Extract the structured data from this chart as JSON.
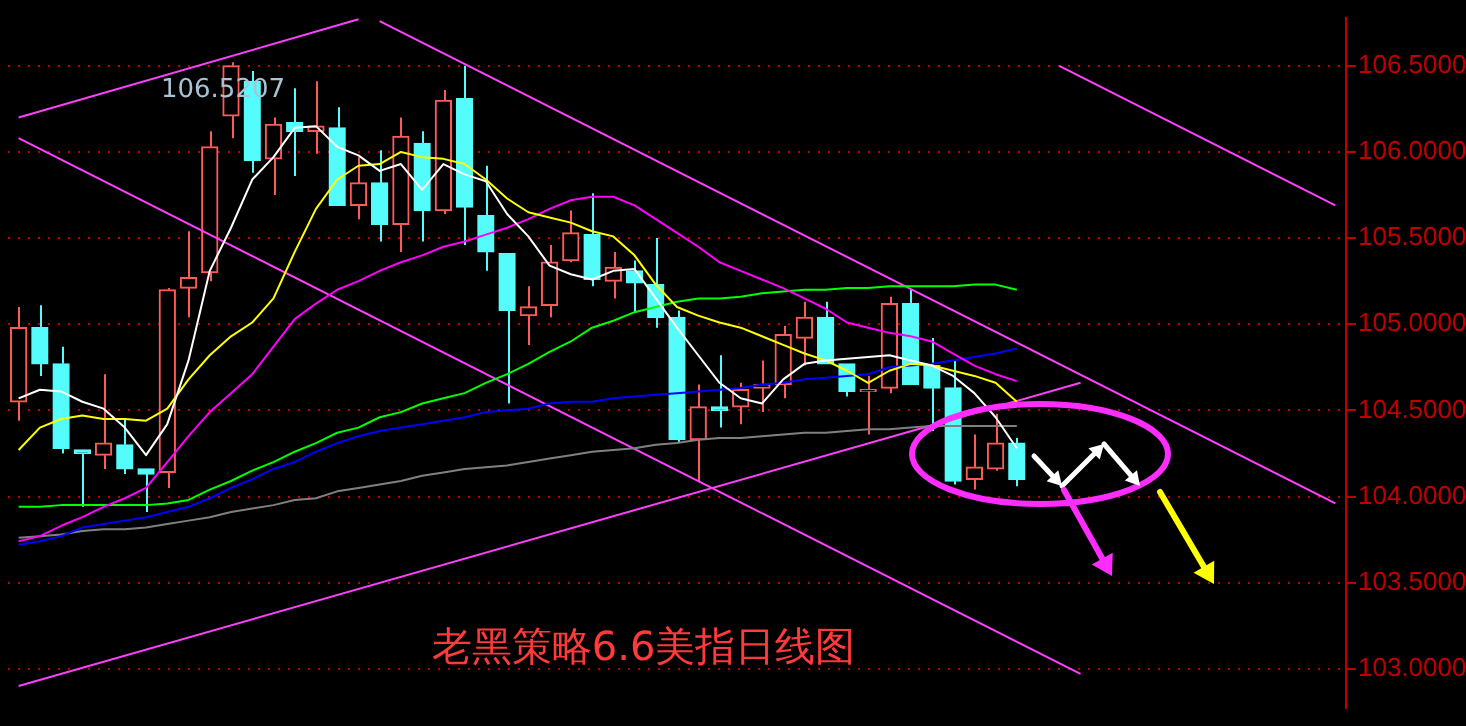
{
  "chart_data": {
    "type": "candlestick",
    "title": "老黑策略6.6美指日线图",
    "categories": [
      null,
      null,
      null,
      null,
      null,
      null,
      null,
      null,
      null,
      null,
      null,
      null,
      null,
      null,
      null,
      null,
      null,
      null,
      null,
      null,
      null,
      null,
      null,
      null,
      null,
      null,
      null,
      null,
      null,
      null,
      null,
      null,
      null,
      null,
      null,
      null,
      null,
      null,
      null,
      null,
      null,
      null,
      null,
      null,
      null,
      null,
      null,
      null,
      null,
      null,
      null,
      null,
      null,
      null,
      null,
      null,
      null,
      null,
      null,
      null,
      null,
      null,
      null
    ],
    "ohlc": [
      [
        104.55,
        105.1,
        104.44,
        104.98
      ],
      [
        104.98,
        105.11,
        104.7,
        104.77
      ],
      [
        104.77,
        104.87,
        104.25,
        104.28
      ],
      [
        104.27,
        104.27,
        103.94,
        104.25
      ],
      [
        104.24,
        104.71,
        104.16,
        104.31
      ],
      [
        104.3,
        104.45,
        104.13,
        104.16
      ],
      [
        104.16,
        104.16,
        103.91,
        104.13
      ],
      [
        104.14,
        105.21,
        104.05,
        105.2
      ],
      [
        105.21,
        105.54,
        105.04,
        105.27
      ],
      [
        105.3,
        106.12,
        105.25,
        106.03
      ],
      [
        106.21,
        106.5207,
        106.08,
        106.5
      ],
      [
        106.41,
        106.47,
        105.88,
        105.95
      ],
      [
        105.96,
        106.2,
        105.75,
        106.16
      ],
      [
        106.17,
        106.37,
        105.86,
        106.12
      ],
      [
        106.12,
        106.41,
        105.99,
        106.15
      ],
      [
        106.14,
        106.26,
        105.69,
        105.69
      ],
      [
        105.69,
        105.97,
        105.61,
        105.82
      ],
      [
        105.82,
        106.01,
        105.48,
        105.58
      ],
      [
        105.58,
        106.2,
        105.42,
        106.09
      ],
      [
        106.05,
        106.12,
        105.48,
        105.66
      ],
      [
        105.66,
        106.36,
        105.64,
        106.3
      ],
      [
        106.31,
        106.5,
        105.46,
        105.68
      ],
      [
        105.63,
        105.92,
        105.31,
        105.42
      ],
      [
        105.41,
        105.41,
        104.54,
        105.08
      ],
      [
        105.05,
        105.22,
        104.88,
        105.1
      ],
      [
        105.11,
        105.46,
        105.04,
        105.36
      ],
      [
        105.37,
        105.66,
        105.36,
        105.53
      ],
      [
        105.52,
        105.76,
        105.22,
        105.26
      ],
      [
        105.25,
        105.42,
        105.15,
        105.33
      ],
      [
        105.31,
        105.37,
        105.07,
        105.24
      ],
      [
        105.23,
        105.5,
        104.98,
        105.04
      ],
      [
        105.04,
        105.08,
        104.31,
        104.33
      ],
      [
        104.33,
        104.65,
        104.09,
        104.52
      ],
      [
        104.52,
        104.82,
        104.4,
        104.5
      ],
      [
        104.52,
        104.66,
        104.42,
        104.62
      ],
      [
        104.63,
        104.79,
        104.49,
        104.65
      ],
      [
        104.65,
        104.99,
        104.57,
        104.94
      ],
      [
        104.92,
        105.13,
        104.76,
        105.04
      ],
      [
        105.04,
        105.13,
        104.77,
        104.77
      ],
      [
        104.77,
        104.77,
        104.58,
        104.61
      ],
      [
        104.61,
        104.7,
        104.36,
        104.62
      ],
      [
        104.63,
        105.16,
        104.6,
        105.12
      ],
      [
        105.12,
        105.2,
        104.65,
        104.65
      ],
      [
        104.76,
        104.92,
        104.38,
        104.63
      ],
      [
        104.63,
        104.79,
        104.07,
        104.09
      ],
      [
        104.1,
        104.36,
        104.04,
        104.17
      ],
      [
        104.16,
        104.48,
        104.15,
        104.31
      ],
      [
        104.31,
        104.34,
        104.06,
        104.1
      ],
      null,
      null,
      null,
      null,
      null,
      null,
      null,
      null,
      null,
      null,
      null,
      null,
      null,
      null,
      null
    ],
    "colors": [
      "#ff5a5a",
      "#54fcfc",
      "#54fcfc",
      "#54fcfc",
      "#ff5a5a",
      "#54fcfc",
      "#54fcfc",
      "#ff5a5a",
      "#ff5a5a",
      "#ff5a5a",
      "#ff5a5a",
      "#54fcfc",
      "#ff5a5a",
      "#54fcfc",
      "#ff5a5a",
      "#54fcfc",
      "#ff5a5a",
      "#54fcfc",
      "#ff5a5a",
      "#54fcfc",
      "#ff5a5a",
      "#54fcfc",
      "#54fcfc",
      "#54fcfc",
      "#ff5a5a",
      "#ff5a5a",
      "#ff5a5a",
      "#54fcfc",
      "#ff5a5a",
      "#54fcfc",
      "#54fcfc",
      "#54fcfc",
      "#ff5a5a",
      "#54fcfc",
      "#ff5a5a",
      "#ff5a5a",
      "#ff5a5a",
      "#ff5a5a",
      "#54fcfc",
      "#54fcfc",
      "#ff5a5a",
      "#ff5a5a",
      "#54fcfc",
      "#54fcfc",
      "#54fcfc",
      "#ff5a5a",
      "#ff5a5a",
      "#54fcfc",
      null,
      null,
      null,
      null,
      null,
      null,
      null,
      null,
      null,
      null,
      null,
      null,
      null,
      null,
      null
    ],
    "series": [
      {
        "type": "line",
        "color": "#ffffff",
        "values": [
          104.57,
          104.62,
          104.61,
          104.55,
          104.51,
          104.4,
          104.24,
          104.42,
          104.79,
          105.31,
          105.56,
          105.84,
          105.97,
          106.14,
          106.15,
          106.03,
          105.98,
          105.89,
          105.93,
          105.78,
          105.93,
          105.87,
          105.83,
          105.64,
          105.51,
          105.34,
          105.29,
          105.26,
          105.31,
          105.32,
          105.15,
          104.98,
          104.82,
          104.66,
          104.57,
          104.54,
          104.68,
          104.77,
          104.79,
          104.8,
          104.81,
          104.82,
          104.79,
          104.76,
          104.7,
          104.6,
          104.46,
          104.28,
          null,
          null,
          null,
          null,
          null,
          null,
          null,
          null,
          null,
          null,
          null,
          null,
          null,
          null,
          null
        ]
      },
      {
        "type": "line",
        "color": "#ffff00",
        "values": [
          104.27,
          104.4,
          104.45,
          104.47,
          104.45,
          104.45,
          104.44,
          104.51,
          104.68,
          104.82,
          104.93,
          105.01,
          105.15,
          105.42,
          105.67,
          105.84,
          105.92,
          105.93,
          106.0,
          105.97,
          105.96,
          105.93,
          105.84,
          105.73,
          105.65,
          105.62,
          105.59,
          105.54,
          105.51,
          105.4,
          105.23,
          105.1,
          105.05,
          105.01,
          104.98,
          104.93,
          104.88,
          104.83,
          104.79,
          104.73,
          104.66,
          104.73,
          104.77,
          104.76,
          104.73,
          104.7,
          104.66,
          104.55,
          null,
          null,
          null,
          null,
          null,
          null,
          null,
          null,
          null,
          null,
          null,
          null,
          null,
          null,
          null
        ]
      },
      {
        "type": "line",
        "color": "#ff00ff",
        "values": [
          103.74,
          103.77,
          103.83,
          103.88,
          103.94,
          103.99,
          104.05,
          104.2,
          104.35,
          104.49,
          104.6,
          104.71,
          104.87,
          105.03,
          105.12,
          105.2,
          105.25,
          105.31,
          105.36,
          105.4,
          105.45,
          105.48,
          105.52,
          105.56,
          105.61,
          105.67,
          105.72,
          105.74,
          105.74,
          105.69,
          105.61,
          105.53,
          105.45,
          105.36,
          105.31,
          105.26,
          105.21,
          105.15,
          105.09,
          105.01,
          104.98,
          104.95,
          104.93,
          104.9,
          104.83,
          104.76,
          104.71,
          104.67,
          null,
          null,
          null,
          null,
          null,
          null,
          null,
          null,
          null,
          null,
          null,
          null,
          null,
          null,
          null
        ]
      },
      {
        "type": "line",
        "color": "#00ff00",
        "values": [
          103.94,
          103.94,
          103.95,
          103.95,
          103.95,
          103.95,
          103.95,
          103.96,
          103.98,
          104.04,
          104.09,
          104.15,
          104.2,
          104.26,
          104.31,
          104.37,
          104.4,
          104.46,
          104.49,
          104.54,
          104.57,
          104.6,
          104.66,
          104.71,
          104.77,
          104.84,
          104.9,
          104.98,
          105.02,
          105.07,
          105.1,
          105.13,
          105.15,
          105.15,
          105.16,
          105.18,
          105.19,
          105.2,
          105.2,
          105.21,
          105.21,
          105.22,
          105.22,
          105.22,
          105.22,
          105.23,
          105.23,
          105.2,
          null,
          null,
          null,
          null,
          null,
          null,
          null,
          null,
          null,
          null,
          null,
          null,
          null,
          null,
          null
        ]
      },
      {
        "type": "line",
        "color": "#0000ff",
        "values": [
          103.72,
          103.74,
          103.77,
          103.82,
          103.84,
          103.86,
          103.88,
          103.91,
          103.94,
          103.99,
          104.05,
          104.1,
          104.16,
          104.2,
          104.26,
          104.31,
          104.35,
          104.38,
          104.4,
          104.42,
          104.44,
          104.46,
          104.49,
          104.5,
          104.51,
          104.54,
          104.55,
          104.55,
          104.57,
          104.58,
          104.59,
          104.6,
          104.61,
          104.62,
          104.63,
          104.65,
          104.66,
          104.68,
          104.69,
          104.7,
          104.71,
          104.75,
          104.76,
          104.77,
          104.79,
          104.81,
          104.83,
          104.86,
          null,
          null,
          null,
          null,
          null,
          null,
          null,
          null,
          null,
          null,
          null,
          null,
          null,
          null,
          null
        ]
      },
      {
        "type": "line",
        "color": "#808080",
        "values": [
          103.76,
          103.77,
          103.78,
          103.8,
          103.81,
          103.81,
          103.82,
          103.84,
          103.86,
          103.88,
          103.91,
          103.93,
          103.95,
          103.98,
          103.99,
          104.03,
          104.05,
          104.07,
          104.09,
          104.12,
          104.14,
          104.16,
          104.17,
          104.18,
          104.2,
          104.22,
          104.24,
          104.26,
          104.27,
          104.28,
          104.3,
          104.31,
          104.33,
          104.34,
          104.34,
          104.35,
          104.36,
          104.37,
          104.37,
          104.38,
          104.39,
          104.39,
          104.4,
          104.41,
          104.41,
          104.41,
          104.41,
          104.41,
          null,
          null,
          null,
          null,
          null,
          null,
          null,
          null,
          null,
          null,
          null,
          null,
          null,
          null,
          null
        ]
      },
      {
        "type": "line",
        "color": "#ff40ff",
        "values": [
          106.2,
          null,
          null,
          null,
          null,
          null,
          null,
          null,
          null,
          null,
          null,
          null,
          null,
          null,
          null,
          null,
          106.77,
          null,
          null,
          null,
          null,
          null,
          null,
          null,
          null,
          null,
          null,
          null,
          null,
          null,
          null,
          null,
          null,
          null,
          null,
          null,
          null,
          null,
          null,
          null,
          null,
          null,
          null,
          null,
          null,
          null,
          null,
          null,
          null,
          null,
          null,
          null,
          null,
          null,
          null,
          null,
          null,
          null,
          null,
          null,
          null,
          null,
          null
        ]
      },
      {
        "type": "line",
        "color": "#ff40ff",
        "values": [
          102.9,
          null,
          null,
          null,
          null,
          null,
          null,
          null,
          null,
          null,
          null,
          null,
          null,
          null,
          null,
          null,
          null,
          null,
          null,
          null,
          null,
          null,
          null,
          null,
          null,
          null,
          null,
          null,
          null,
          null,
          null,
          null,
          null,
          null,
          null,
          null,
          null,
          null,
          null,
          null,
          null,
          null,
          null,
          null,
          null,
          null,
          null,
          null,
          null,
          null,
          104.66,
          null,
          null,
          null,
          null,
          null,
          null,
          null,
          null,
          null,
          null,
          null,
          null
        ]
      },
      {
        "type": "line",
        "color": "#ff40ff",
        "values": [
          null,
          null,
          null,
          null,
          null,
          null,
          null,
          null,
          null,
          null,
          null,
          null,
          null,
          null,
          null,
          null,
          null,
          106.76,
          null,
          null,
          null,
          null,
          null,
          null,
          null,
          null,
          null,
          null,
          null,
          null,
          null,
          null,
          null,
          null,
          null,
          null,
          null,
          null,
          null,
          null,
          null,
          null,
          null,
          null,
          null,
          null,
          null,
          null,
          null,
          null,
          null,
          null,
          null,
          null,
          null,
          null,
          null,
          null,
          null,
          null,
          null,
          null,
          103.96
        ]
      },
      {
        "type": "line",
        "color": "#ff40ff",
        "values": [
          106.08,
          null,
          null,
          null,
          null,
          null,
          null,
          null,
          null,
          null,
          null,
          null,
          null,
          null,
          null,
          null,
          null,
          null,
          null,
          null,
          null,
          null,
          null,
          null,
          null,
          null,
          null,
          null,
          null,
          null,
          null,
          null,
          null,
          null,
          null,
          null,
          null,
          null,
          null,
          null,
          null,
          null,
          null,
          null,
          null,
          null,
          null,
          null,
          null,
          null,
          102.97,
          null,
          null,
          null,
          null,
          null,
          null,
          null,
          null,
          null,
          null,
          null,
          null
        ]
      },
      {
        "type": "line",
        "color": "#ff40ff",
        "values": [
          null,
          null,
          null,
          null,
          null,
          null,
          null,
          null,
          null,
          null,
          null,
          null,
          null,
          null,
          null,
          null,
          null,
          null,
          null,
          null,
          null,
          null,
          null,
          null,
          null,
          null,
          null,
          null,
          null,
          null,
          null,
          null,
          null,
          null,
          null,
          null,
          null,
          null,
          null,
          null,
          null,
          null,
          null,
          null,
          null,
          null,
          null,
          null,
          null,
          106.5,
          null,
          null,
          null,
          null,
          null,
          null,
          null,
          null,
          null,
          null,
          null,
          null,
          105.69
        ]
      }
    ],
    "annotations": [
      {
        "text": "106.5207",
        "y": 106.5207
      }
    ],
    "ylim": [
      102.77,
      106.78
    ],
    "yticks": [
      {
        "value": 103,
        "label": "103.0000"
      },
      {
        "value": 103.5,
        "label": "103.5000"
      },
      {
        "value": 104,
        "label": "104.0000"
      },
      {
        "value": 104.5,
        "label": "104.5000"
      },
      {
        "value": 105,
        "label": "105.0000"
      },
      {
        "value": 105.5,
        "label": "105.5000"
      },
      {
        "value": 106,
        "label": "106.0000"
      },
      {
        "value": 106.5,
        "label": "106.5000"
      }
    ],
    "grid": "y",
    "legend": false,
    "marker": "none",
    "tick_labels": "y"
  }
}
